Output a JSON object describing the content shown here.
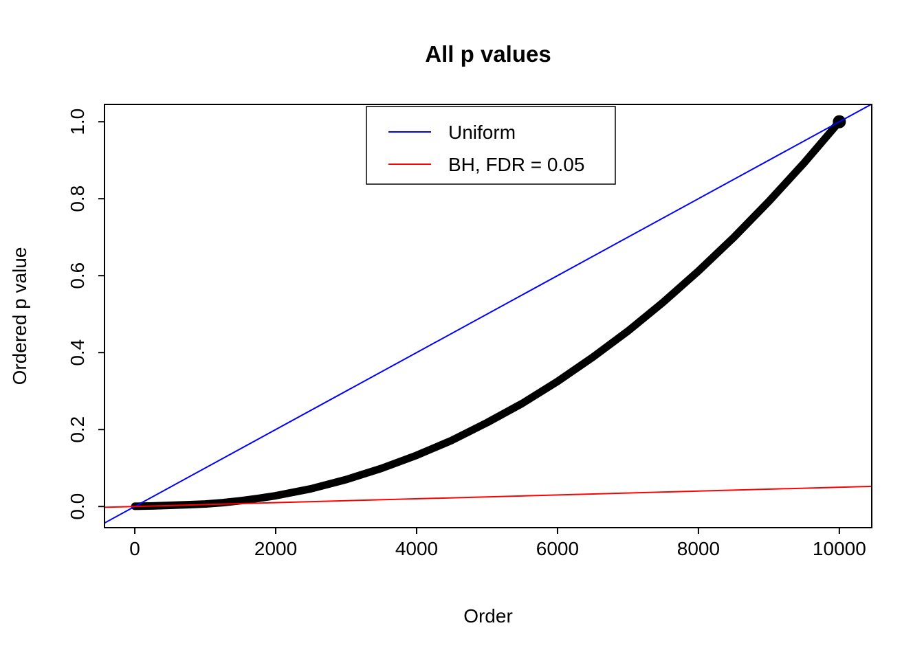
{
  "chart_data": {
    "type": "scatter",
    "title": "All p values",
    "xlabel": "Order",
    "ylabel": "Ordered p value",
    "xlim": [
      -430,
      10460
    ],
    "ylim": [
      -0.055,
      1.045
    ],
    "x_ticks": [
      0,
      2000,
      4000,
      6000,
      8000,
      10000
    ],
    "x_tick_labels": [
      "0",
      "2000",
      "4000",
      "6000",
      "8000",
      "10000"
    ],
    "y_ticks": [
      0.0,
      0.2,
      0.4,
      0.6,
      0.8,
      1.0
    ],
    "y_tick_labels": [
      "0.0",
      "0.2",
      "0.4",
      "0.6",
      "0.8",
      "1.0"
    ],
    "grid": false,
    "background_color": "#ffffff",
    "legend": {
      "position": "top-center",
      "entries": [
        {
          "label": "Uniform",
          "color": "#0000ff"
        },
        {
          "label": "BH, FDR = 0.05",
          "color": "#ff0000"
        }
      ]
    },
    "series": [
      {
        "name": "Ordered p values",
        "type": "thick-point-curve",
        "color": "#000000",
        "points": [
          [
            0,
            0.0005
          ],
          [
            250,
            0.0015
          ],
          [
            500,
            0.003
          ],
          [
            750,
            0.0045
          ],
          [
            1000,
            0.0065
          ],
          [
            1250,
            0.01
          ],
          [
            1500,
            0.015
          ],
          [
            1750,
            0.021
          ],
          [
            2000,
            0.028
          ],
          [
            2500,
            0.046
          ],
          [
            3000,
            0.07
          ],
          [
            3500,
            0.099
          ],
          [
            4000,
            0.133
          ],
          [
            4500,
            0.172
          ],
          [
            5000,
            0.218
          ],
          [
            5500,
            0.268
          ],
          [
            6000,
            0.325
          ],
          [
            6500,
            0.388
          ],
          [
            7000,
            0.456
          ],
          [
            7500,
            0.531
          ],
          [
            8000,
            0.612
          ],
          [
            8500,
            0.699
          ],
          [
            9000,
            0.793
          ],
          [
            9500,
            0.893
          ],
          [
            10000,
            1.0
          ]
        ]
      },
      {
        "name": "Uniform",
        "type": "line",
        "color": "#0000ff",
        "intercept": 0,
        "slope": 0.0001
      },
      {
        "name": "BH, FDR = 0.05",
        "type": "line",
        "color": "#ff0000",
        "intercept": 0,
        "slope": 5e-06
      }
    ]
  }
}
